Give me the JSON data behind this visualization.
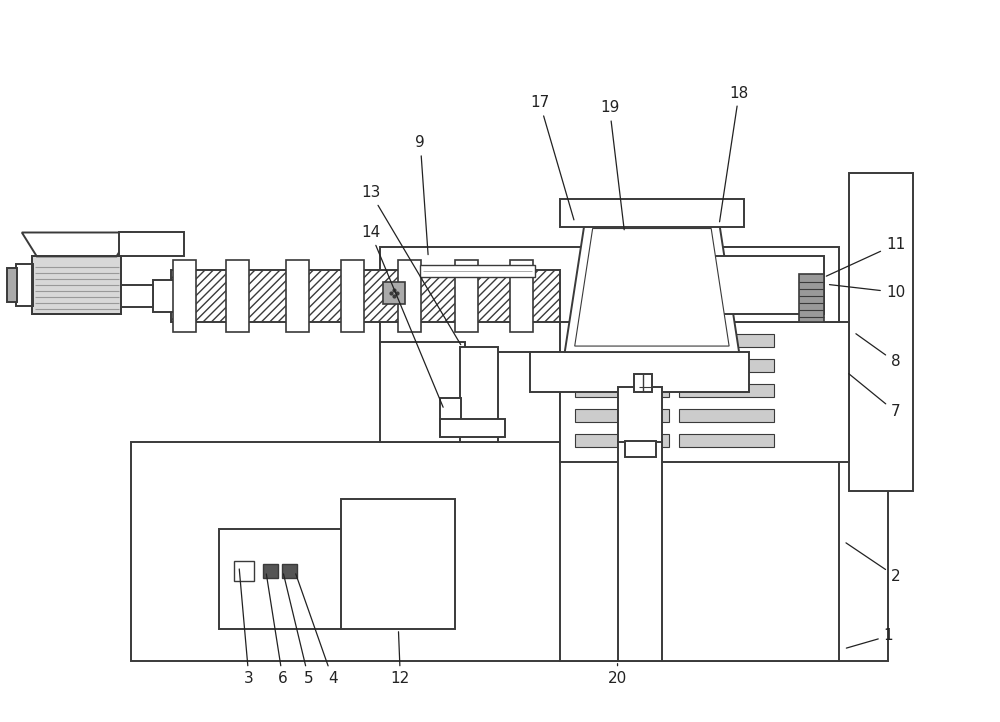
{
  "lw": 1.4,
  "lc": "#3a3a3a",
  "fs": 11,
  "tc": "#222222",
  "figsize": [
    10.0,
    7.22
  ],
  "dpi": 100
}
